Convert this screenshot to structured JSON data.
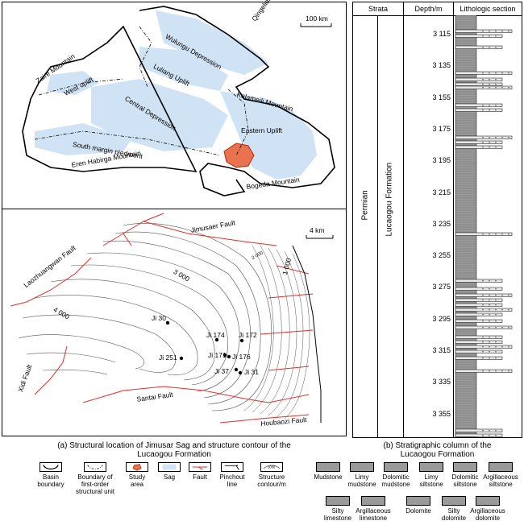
{
  "map_a": {
    "scale": "100 km",
    "labels": {
      "qingelidi": "Qingelidi Mountain",
      "wulungu": "Wulungu Depression",
      "zaire": "Zaire Mountain",
      "west_uplift": "West uplift",
      "luliang": "Luliang Uplift",
      "central": "Central Depression",
      "kelameili": "Kelameili Mountain",
      "eastern": "Eastern Uplift",
      "south_margin": "South margin piedmont",
      "eren": "Eren Habirga Mountain",
      "bogeda": "Bogeda Mountain"
    }
  },
  "map_b": {
    "scale": "4 km",
    "faults": {
      "jimusaer": "Jimusaer Fault",
      "laozhuang": "Laozhuangwan Fault",
      "xidi": "Xidi Fault",
      "santai": "Santai Fault",
      "houbaozi": "Houbaozi Fault"
    },
    "contours": {
      "c3000": "3 000",
      "c4000": "4 000",
      "c1000": "1 000",
      "c2000": "2 000"
    },
    "wells": {
      "ji30": "Ji 30",
      "ji174": "Ji 174",
      "ji172": "Ji 172",
      "ji251": "Ji 251",
      "ji171": "Ji 171",
      "ji176": "Ji 176",
      "ji37": "Ji 37",
      "ji31": "Ji 31"
    }
  },
  "captions": {
    "a_line1": "(a) Structural location of Jimusar Sag and structure contour of the",
    "a_line2": "Lucaogou Formation",
    "b_line1": "(b) Stratigraphic column of the",
    "b_line2": "Lucaogou Formation"
  },
  "column": {
    "header_strata": "Strata",
    "header_depth": "Depth/m",
    "header_litho": "Lithologic section",
    "system": "Permian",
    "formation": "Lucaogou Formation",
    "depths": [
      "3 115",
      "3 135",
      "3 155",
      "3 175",
      "3 195",
      "3 215",
      "3 235",
      "3 255",
      "3 275",
      "3 295",
      "3 315",
      "3 335",
      "3 355"
    ]
  },
  "legend_left": {
    "basin": "Basin\nboundary",
    "first_order": "Boundary of\nfirst-order\nstructural unit",
    "study": "Study\narea",
    "sag": "Sag",
    "fault": "Fault",
    "pinchout": "Pinchout\nline",
    "contour": "Structure\ncontour/m",
    "contour_sample": "1000"
  },
  "legend_right": {
    "mudstone": "Mudstone",
    "limy_mudstone": "Limy\nmudstone",
    "dolomitic_mudstone": "Dolomitic\nmudstone",
    "limy_siltstone": "Limy\nsiltstone",
    "dolomitic_siltstone": "Dolomitic\nsiltstone",
    "argillaceous_siltstone": "Argillaceous\nsiltstone",
    "silty_limestone": "Silty\nlimestone",
    "argillaceous_limestone": "Argillaceous\nlimestone",
    "dolomite": "Dolomite",
    "silty_dolomite": "Silty\ndolomite",
    "argillaceous_dolomite": "Argillaceous\ndolomite"
  },
  "colors": {
    "sag": "#cfe3f5",
    "fault": "#e0302a",
    "study": "#e8734d",
    "mud": "#9a9a9a"
  }
}
